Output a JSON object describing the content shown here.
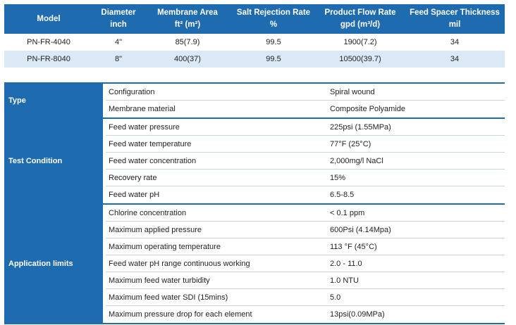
{
  "models_table": {
    "headers": [
      {
        "line1": "Model",
        "line2": ""
      },
      {
        "line1": "Diameter",
        "line2": "inch"
      },
      {
        "line1": "Membrane Area",
        "line2": "ft² (m²)"
      },
      {
        "line1": "Salt Rejection Rate",
        "line2": "%"
      },
      {
        "line1": "Product Flow Rate",
        "line2": "gpd (m³/d)"
      },
      {
        "line1": "Feed Spacer Thickness",
        "line2": "mil"
      }
    ],
    "rows": [
      [
        "PN-FR-4040",
        "4\"",
        "85(7.9)",
        "99.5",
        "1900(7.2)",
        "34"
      ],
      [
        "PN-FR-8040",
        "8\"",
        "400(37)",
        "99.5",
        "10500(39.7)",
        "34"
      ]
    ]
  },
  "spec_table": {
    "groups": [
      {
        "label": "Type",
        "rows": [
          {
            "key": "Configuration",
            "value": "Spiral wound"
          },
          {
            "key": "Membrane material",
            "value": "Composite Polyamide"
          }
        ]
      },
      {
        "label": "Test Condition",
        "rows": [
          {
            "key": "Feed water pressure",
            "value": "225psi (1.55MPa)"
          },
          {
            "key": "Feed water temperature",
            "value": "77°F (25°C)"
          },
          {
            "key": "Feed water concentration",
            "value": "2,000mg/l NaCl"
          },
          {
            "key": "Recovery rate",
            "value": "15%"
          },
          {
            "key": "Feed water pH",
            "value": "6.5-8.5"
          }
        ]
      },
      {
        "label": "Application limits",
        "rows": [
          {
            "key": "Chlorine concentration",
            "value": "< 0.1 ppm"
          },
          {
            "key": "Maximum applied pressure",
            "value": "600Psi (4.14Mpa)"
          },
          {
            "key": "Maximum operating temperature",
            "value": "113 °F (45°C)"
          },
          {
            "key": "Feed water pH range continuous working",
            "value": "2.0 - 11.0"
          },
          {
            "key": "Maximum feed water turbidity",
            "value": "1.0 NTU"
          },
          {
            "key": "Maximum feed water SDI (15mins)",
            "value": "5.0"
          },
          {
            "key": "Maximum pressure drop for each element",
            "value": "13psi(0.09MPa)"
          }
        ]
      }
    ]
  }
}
